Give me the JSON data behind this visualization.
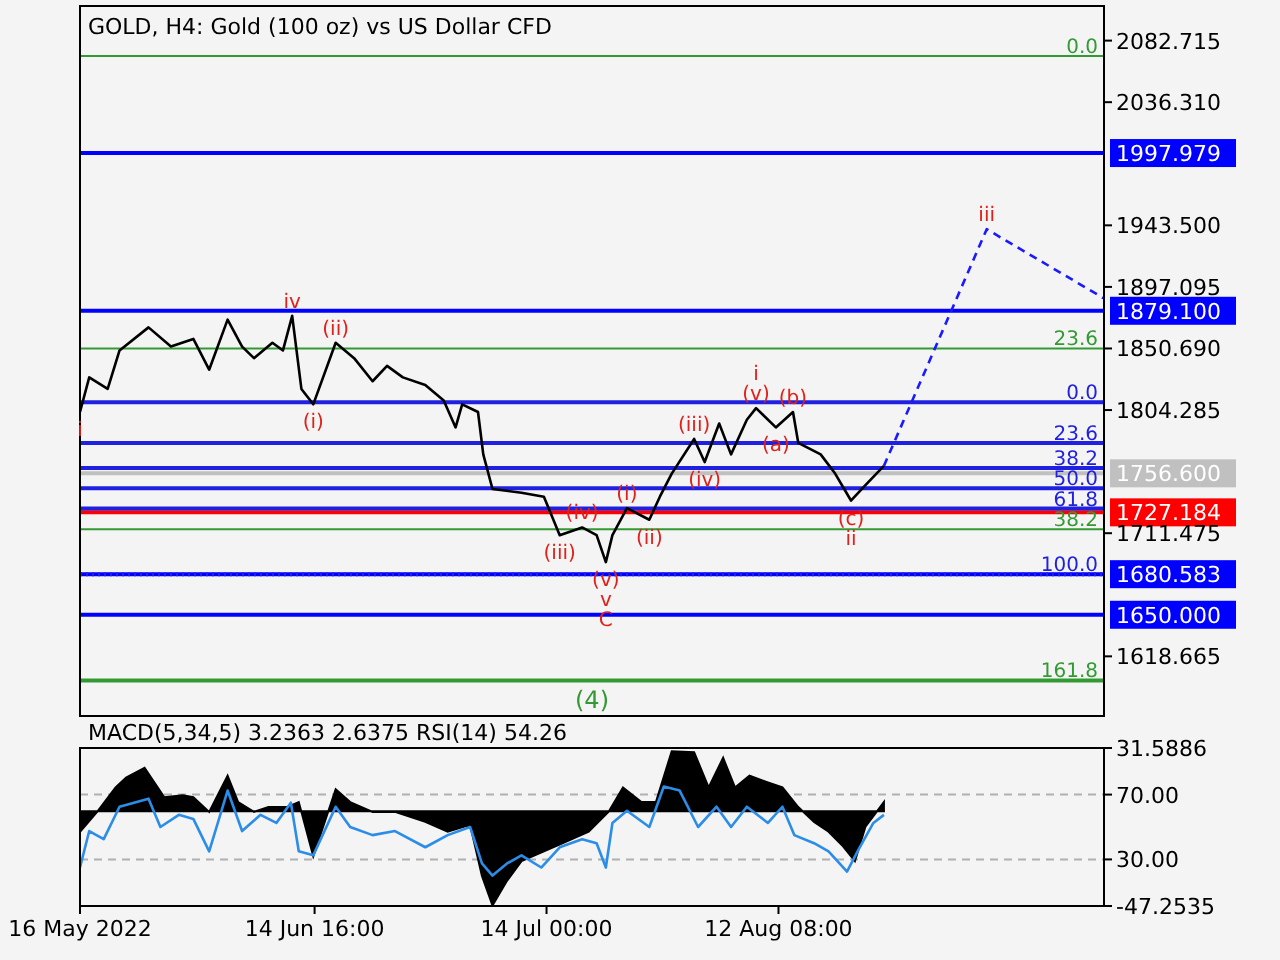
{
  "chart_data": [
    {
      "type": "line",
      "title": "GOLD, H4:  Gold (100 oz) vs US Dollar CFD",
      "tick_labels": "y",
      "xlim": [
        "2022-05-16T00:00",
        "2022-09-22T12:00"
      ],
      "ylim": [
        1573.7,
        2108.8
      ],
      "y2lim": [
        182.5,
        -230.6
      ],
      "yticks": [
        2082.715,
        {
          "value": 2036.31,
          "label": "2036.310"
        },
        {
          "value": 1943.5,
          "label": "1943.500"
        },
        1897.095,
        {
          "value": 1850.69,
          "label": "1850.690"
        },
        1804.285,
        1711.475,
        1618.665
      ],
      "series": [
        {
          "color": "#000000",
          "x": [
            "2022-05-16T00:00",
            "2022-05-17T04:00",
            "2022-05-19T12:00",
            "2022-05-21T00:00",
            "2022-05-24T16:00",
            "2022-05-27T12:00",
            "2022-05-30T08:00",
            "2022-06-01T08:00",
            "2022-06-03T16:00",
            "2022-06-05T12:00",
            "2022-06-07T00:00",
            "2022-06-09T08:00",
            "2022-06-10T16:00",
            "2022-06-11T20:00",
            "2022-06-13T00:00",
            "2022-06-14T12:00",
            "2022-06-17T08:00",
            "2022-06-19T16:00",
            "2022-06-22T00:00",
            "2022-06-23T20:00",
            "2022-06-25T20:00",
            "2022-06-28T16:00",
            "2022-07-01T00:00",
            "2022-07-02T12:00",
            "2022-07-03T08:00",
            "2022-07-05T08:00",
            "2022-07-06T00:00",
            "2022-07-07T04:00",
            "2022-07-10T20:00",
            "2022-07-13T16:00",
            "2022-07-15T16:00",
            "2022-07-18T12:00",
            "2022-07-20T08:00",
            "2022-07-21T12:00",
            "2022-07-22T08:00",
            "2022-07-24T04:00",
            "2022-07-27T00:00",
            "2022-07-28T08:00",
            "2022-07-29T20:00",
            "2022-08-01T16:00",
            "2022-08-03T00:00",
            "2022-08-04T20:00",
            "2022-08-06T08:00",
            "2022-08-08T08:00",
            "2022-08-09T12:00",
            "2022-08-12T00:00",
            "2022-08-14T04:00",
            "2022-08-14T20:00",
            "2022-08-17T16:00",
            "2022-08-19T12:00",
            "2022-08-21T12:00",
            "2022-08-23T08:00",
            "2022-08-25T16:00"
          ],
          "values": [
            1802.8,
            1828.9,
            1820.2,
            1849.2,
            1866.6,
            1852.1,
            1857.9,
            1834.7,
            1872.4,
            1852.1,
            1843.4,
            1855.0,
            1849.2,
            1875.3,
            1820.2,
            1808.6,
            1855.0,
            1843.4,
            1826.0,
            1837.6,
            1828.9,
            1823.1,
            1811.5,
            1791.2,
            1808.6,
            1802.8,
            1770.9,
            1744.8,
            1741.9,
            1739.0,
            1710.0,
            1715.8,
            1710.0,
            1689.7,
            1710.0,
            1730.3,
            1721.6,
            1739.0,
            1756.4,
            1782.5,
            1765.1,
            1794.1,
            1770.9,
            1797.0,
            1805.7,
            1791.2,
            1802.8,
            1779.6,
            1770.9,
            1756.4,
            1736.1,
            1747.7,
            1762.2
          ]
        },
        {
          "color": "#1a1aff",
          "line_style": "dashed",
          "x": [
            "2022-08-25T16:00",
            "2022-09-07T16:00",
            "2022-09-22T12:00"
          ],
          "values": [
            1762.2,
            1940.6,
            1888.4
          ]
        }
      ],
      "ref_lines": [
        {
          "axis": "y",
          "value": 1997.979,
          "label": "1997.979",
          "color": "#0000ff"
        },
        {
          "axis": "y",
          "value": 1879.1,
          "label": "1879.100",
          "color": "#0000ff"
        },
        {
          "axis": "y",
          "value": 1756.6,
          "label": "1756.600",
          "color": "#c0c0c0"
        },
        {
          "axis": "y",
          "value": 1727.184,
          "label": "1727.184",
          "color": "#ff0000"
        },
        {
          "axis": "y",
          "value": 1680.583,
          "label": "1680.583",
          "color": "#0000ff"
        },
        {
          "axis": "y",
          "value": 1650.0,
          "label": "1650.000",
          "color": "#0000ff"
        },
        {
          "axis": "y",
          "value": 2071.1,
          "color": "#339933"
        },
        {
          "axis": "y",
          "value": 1850.7,
          "color": "#339933"
        },
        {
          "axis": "y",
          "value": 1714.4,
          "color": "#339933"
        },
        {
          "axis": "y2",
          "value": 161.8,
          "label": "161.8",
          "color": "#339933"
        },
        {
          "axis": "y2",
          "value": 0,
          "label": "0.0",
          "color": "#2020e0"
        },
        {
          "axis": "y2",
          "value": 23.6,
          "label": "23.6",
          "color": "#2020e0"
        },
        {
          "axis": "y2",
          "value": 38.2,
          "label": "38.2",
          "color": "#2020e0"
        },
        {
          "axis": "y2",
          "value": 50,
          "label": "50.0",
          "color": "#2020e0"
        },
        {
          "axis": "y2",
          "value": 61.8,
          "label": "61.8",
          "color": "#2020e0"
        },
        {
          "axis": "y2",
          "value": 100,
          "label": "100.0",
          "color": "#2020e0",
          "line_style": "dotted"
        }
      ],
      "annotations": [
        "0.0",
        "23.6",
        "38.2",
        {
          "text": "i",
          "x": "2022-05-16T00:00",
          "y": 1802.8
        },
        {
          "text": "iv",
          "x": "2022-06-11T20:00",
          "y": 1875.3
        },
        {
          "text": "(i)",
          "x": "2022-06-14T12:00",
          "y": 1808.6
        },
        {
          "text": "(ii)",
          "x": "2022-06-17T08:00",
          "y": 1855.0
        },
        {
          "text": "(iii)",
          "x": "2022-07-15T16:00",
          "y": 1710.0
        },
        {
          "text": "(iv)",
          "x": "2022-07-18T12:00",
          "y": 1715.8
        },
        {
          "text": "(v)",
          "x": "2022-07-21T12:00",
          "y": 1689.7
        },
        {
          "text": "v",
          "x": "2022-07-21T12:00",
          "y": 1689.7
        },
        {
          "text": "C",
          "x": "2022-07-21T12:00",
          "y": 1689.7
        },
        "(4)",
        {
          "text": "(i)",
          "x": "2022-07-24T04:00",
          "y": 1730.3
        },
        {
          "text": "(ii)",
          "x": "2022-07-27T00:00",
          "y": 1721.6
        },
        {
          "text": "(iii)",
          "x": "2022-08-01T16:00",
          "y": 1782.5
        },
        {
          "text": "(iv)",
          "x": "2022-08-03T00:00",
          "y": 1765.1
        },
        {
          "text": "(v)",
          "x": "2022-08-09T12:00",
          "y": 1805.7
        },
        {
          "text": "i",
          "x": "2022-08-09T12:00",
          "y": 1805.7
        },
        {
          "text": "(a)",
          "x": "2022-08-12T00:00",
          "y": 1791.2
        },
        {
          "text": "(b)",
          "x": "2022-08-14T04:00",
          "y": 1802.8
        },
        {
          "text": "(c)",
          "x": "2022-08-21T12:00",
          "y": 1736.1
        },
        {
          "text": "ii",
          "x": "2022-08-21T12:00",
          "y": 1736.1
        },
        {
          "text": "iii",
          "x": "2022-09-07T16:00",
          "y": 1940.6
        }
      ]
    },
    {
      "type": "area",
      "title": "MACD(5,34,5) 3.2363 2.6375 RSI(14) 54.26",
      "xlim": [
        "2022-05-16T00:00",
        "2022-09-22T12:00"
      ],
      "xticks": [
        {
          "value": "2022-05-16T00:00",
          "label": "16 May 2022"
        },
        {
          "value": "2022-06-14T16:00",
          "label": "14 Jun 16:00"
        },
        {
          "value": "2022-07-14T00:00",
          "label": "14 Jul 00:00"
        },
        {
          "value": "2022-08-12T08:00",
          "label": "12 Aug 08:00"
        }
      ],
      "ylim": [
        -47.2535,
        31.5886
      ],
      "yticks": [
        31.5886,
        -47.2535
      ],
      "y2lim": [
        1.25,
        98.75
      ],
      "y2ticks": [
        {
          "value": 70,
          "label": "70.00"
        },
        {
          "value": 30,
          "label": "30.00"
        }
      ],
      "ref_lines": [
        {
          "axis": "y2",
          "value": 70,
          "color": "#b0b0b0",
          "line_style": "dashed"
        },
        {
          "axis": "y2",
          "value": 30,
          "color": "#b0b0b0",
          "line_style": "dashed"
        }
      ],
      "series": [
        {
          "color": "#000000",
          "x": [
            "2022-05-16T00:00",
            "2022-05-18T04:00",
            "2022-05-20T12:00",
            "2022-05-21T20:00",
            "2022-05-24T04:00",
            "2022-05-26T16:00",
            "2022-05-29T00:00",
            "2022-05-30T08:00",
            "2022-06-01T08:00",
            "2022-06-03T16:00",
            "2022-06-05T00:00",
            "2022-06-07T00:00",
            "2022-06-08T20:00",
            "2022-06-11T04:00",
            "2022-06-12T16:00",
            "2022-06-14T12:00",
            "2022-06-17T08:00",
            "2022-06-19T04:00",
            "2022-06-22T00:00",
            "2022-06-24T20:00",
            "2022-06-28T16:00",
            "2022-07-01T12:00",
            "2022-07-04T08:00",
            "2022-07-05T20:00",
            "2022-07-07T04:00",
            "2022-07-09T00:00",
            "2022-07-10T20:00",
            "2022-07-13T16:00",
            "2022-07-16T12:00",
            "2022-07-19T08:00",
            "2022-07-21T20:00",
            "2022-07-23T16:00",
            "2022-07-26T00:00",
            "2022-07-27T20:00",
            "2022-07-29T20:00",
            "2022-08-01T16:00",
            "2022-08-03T12:00",
            "2022-08-05T08:00",
            "2022-08-06T20:00",
            "2022-08-08T16:00",
            "2022-08-11T00:00",
            "2022-08-12T20:00",
            "2022-08-14T20:00",
            "2022-08-16T20:00",
            "2022-08-18T16:00",
            "2022-08-20T12:00",
            "2022-08-22T00:00",
            "2022-08-23T08:00",
            "2022-08-25T16:00"
          ],
          "values": [
            -10.2,
            -0.3,
            11.9,
            16.8,
            21.7,
            7.0,
            8.0,
            7.0,
            -0.3,
            17.8,
            4.6,
            -0.3,
            2.1,
            2.1,
            4.6,
            -22.4,
            11.0,
            4.6,
            -0.3,
            -0.3,
            -5.3,
            -10.2,
            -6.7,
            -32.3,
            -47.0,
            -34.7,
            -24.9,
            -20.0,
            -15.1,
            -10.2,
            -0.3,
            11.9,
            4.6,
            4.6,
            30.0,
            29.5,
            11.9,
            26.7,
            11.9,
            17.8,
            14.4,
            11.9,
            2.1,
            -5.3,
            -10.2,
            -17.5,
            -24.9,
            -7.7,
            4.6
          ]
        },
        {
          "type": "line",
          "axis": "y2",
          "color": "#2b8de8",
          "x": [
            "2022-05-16T00:00",
            "2022-05-17T04:00",
            "2022-05-19T00:00",
            "2022-05-21T00:00",
            "2022-05-22T20:00",
            "2022-05-24T16:00",
            "2022-05-26T04:00",
            "2022-05-28T12:00",
            "2022-05-30T08:00",
            "2022-06-01T08:00",
            "2022-06-03T16:00",
            "2022-06-05T12:00",
            "2022-06-07T20:00",
            "2022-06-09T20:00",
            "2022-06-11T16:00",
            "2022-06-12T16:00",
            "2022-06-14T12:00",
            "2022-06-17T08:00",
            "2022-06-19T04:00",
            "2022-06-22T00:00",
            "2022-06-24T20:00",
            "2022-06-28T16:00",
            "2022-07-01T12:00",
            "2022-07-04T08:00",
            "2022-07-05T20:00",
            "2022-07-07T04:00",
            "2022-07-09T00:00",
            "2022-07-10T20:00",
            "2022-07-13T08:00",
            "2022-07-15T16:00",
            "2022-07-18T12:00",
            "2022-07-20T08:00",
            "2022-07-21T12:00",
            "2022-07-22T08:00",
            "2022-07-24T04:00",
            "2022-07-27T00:00",
            "2022-07-28T20:00",
            "2022-07-30T20:00",
            "2022-08-02T04:00",
            "2022-08-04T12:00",
            "2022-08-06T08:00",
            "2022-08-08T08:00",
            "2022-08-11T00:00",
            "2022-08-12T20:00",
            "2022-08-14T08:00",
            "2022-08-16T20:00",
            "2022-08-18T16:00",
            "2022-08-21T00:00",
            "2022-08-22T08:00",
            "2022-08-24T08:00",
            "2022-08-25T16:00"
          ],
          "values": [
            25,
            47.5,
            42.5,
            62.5,
            65,
            67.5,
            50,
            57.5,
            55,
            35,
            72.5,
            47.5,
            57.5,
            52.5,
            65,
            35,
            32.5,
            62.5,
            50,
            45,
            47.5,
            37.5,
            45,
            50,
            27.5,
            20,
            27.5,
            32.5,
            25,
            37.5,
            42.5,
            40,
            25,
            52.5,
            60,
            50,
            75,
            72.5,
            50,
            62.5,
            50,
            62.5,
            52.5,
            62.5,
            45,
            40,
            35,
            22.5,
            35,
            52.5,
            57.5
          ]
        }
      ]
    }
  ]
}
